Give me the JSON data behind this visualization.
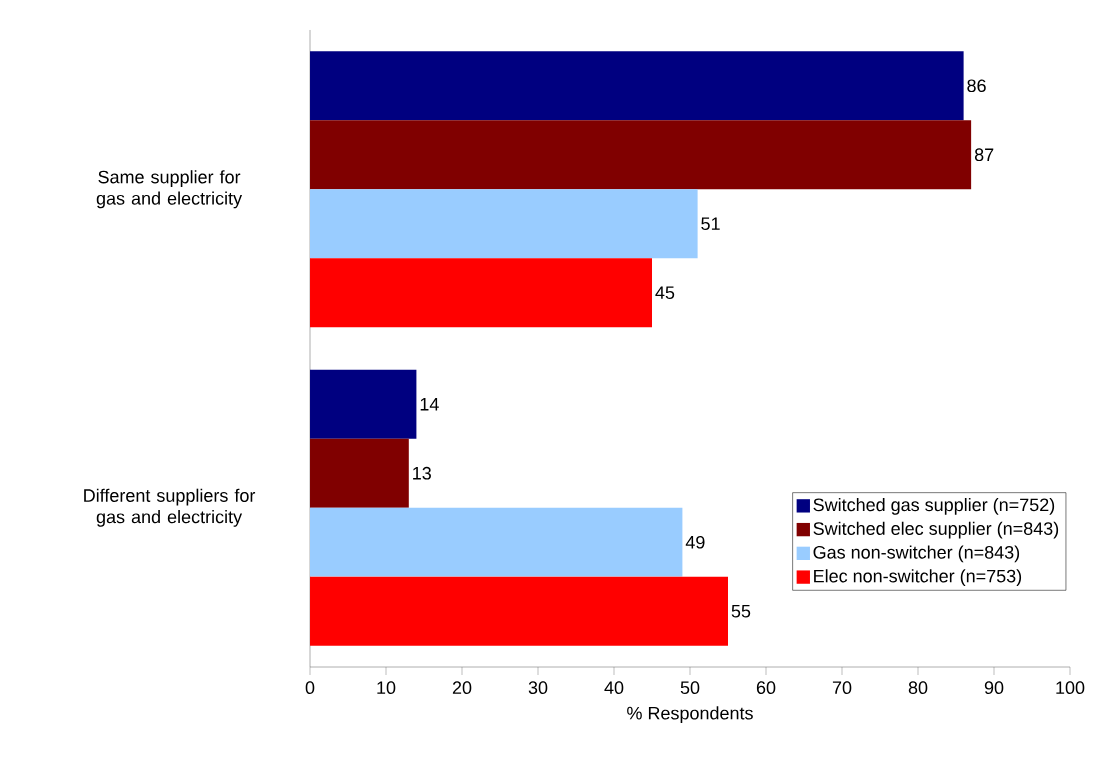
{
  "chart_data": {
    "type": "bar",
    "orientation": "horizontal",
    "categories": [
      "Same supplier for gas and electricity",
      "Different suppliers for gas and electricity"
    ],
    "series": [
      {
        "name": "Switched gas supplier (n=752)",
        "color": "#000080",
        "values": [
          86,
          14
        ]
      },
      {
        "name": "Switched elec supplier (n=843)",
        "color": "#800000",
        "values": [
          87,
          13
        ]
      },
      {
        "name": "Gas non-switcher (n=843)",
        "color": "#99ccff",
        "values": [
          51,
          49
        ]
      },
      {
        "name": "Elec non-switcher (n=753)",
        "color": "#ff0000",
        "values": [
          45,
          55
        ]
      }
    ],
    "xlim": [
      0,
      100
    ],
    "xticks": [
      0,
      10,
      20,
      30,
      40,
      50,
      60,
      70,
      80,
      90,
      100
    ],
    "xlabel": "% Respondents",
    "data_labels": true,
    "legend": "bottom right"
  }
}
